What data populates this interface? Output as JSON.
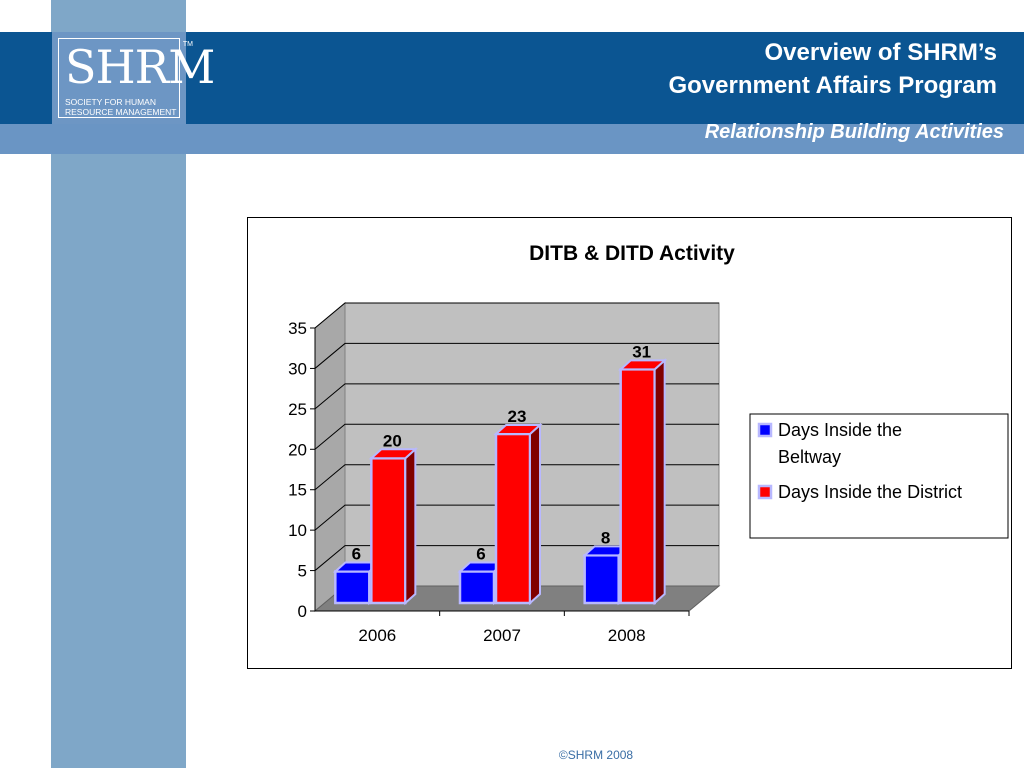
{
  "header": {
    "title_line1": "Overview of SHRM’s",
    "title_line2": "Government Affairs Program",
    "subtitle": "Relationship Building Activities"
  },
  "logo": {
    "text": "SHRM",
    "tm": "TM",
    "tagline_line1": "SOCIETY FOR HUMAN",
    "tagline_line2": "RESOURCE MANAGEMENT"
  },
  "footer": {
    "copyright": "©SHRM 2008"
  },
  "colors": {
    "header_blue": "#0b5592",
    "subheader_blue": "#6a95c4",
    "sidebar_blue": "#7fa7c8",
    "series_blue": "#0000ff",
    "series_red": "#ff0000",
    "wall_gray": "#c0c0c0",
    "floor_gray": "#808080"
  },
  "chart_data": {
    "type": "bar",
    "title": "DITB & DITD Activity",
    "categories": [
      "2006",
      "2007",
      "2008"
    ],
    "series": [
      {
        "name": "Days Inside the Beltway",
        "values": [
          6,
          6,
          8
        ],
        "color": "#0000ff"
      },
      {
        "name": "Days Inside the District",
        "values": [
          20,
          23,
          31
        ],
        "color": "#ff0000"
      }
    ],
    "ylim": [
      0,
      35
    ],
    "yticks": [
      0,
      5,
      10,
      15,
      20,
      25,
      30,
      35
    ],
    "grid": true,
    "legend": "right",
    "legend_lines": [
      [
        "Days Inside the",
        "Beltway"
      ],
      [
        "Days Inside the District"
      ]
    ]
  }
}
